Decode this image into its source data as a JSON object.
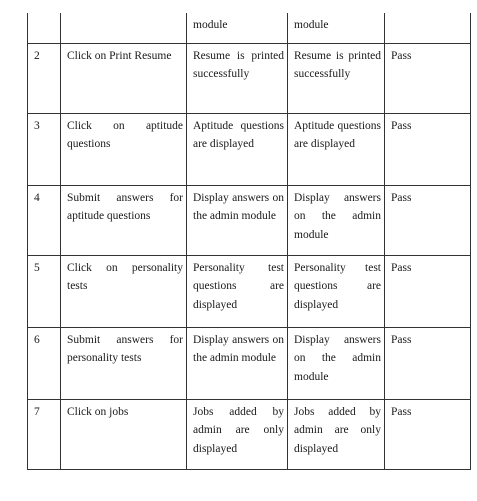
{
  "rows": [
    {
      "no": "",
      "action": "",
      "expected": "module",
      "actual": "module",
      "result": ""
    },
    {
      "no": "2",
      "action": "Click on Print Resume",
      "expected": "Resume is printed successfully",
      "actual": "Resume is printed successfully",
      "result": "Pass"
    },
    {
      "no": "3",
      "action": "Click on aptitude questions",
      "expected": "Aptitude questions are displayed",
      "actual": "Aptitude questions are displayed",
      "result": "Pass"
    },
    {
      "no": "4",
      "action": "Submit answers for aptitude questions",
      "expected": "Display answers on the admin module",
      "actual": "Display answers on the admin module",
      "result": "Pass"
    },
    {
      "no": "5",
      "action": "Click on personality tests",
      "expected": "Personality test questions are displayed",
      "actual": "Personality test questions are displayed",
      "result": "Pass"
    },
    {
      "no": "6",
      "action": "Submit answers for personality tests",
      "expected": "Display answers on the admin module",
      "actual": "Display answers on the admin module",
      "result": "Pass"
    },
    {
      "no": "7",
      "action": "Click on jobs",
      "expected": "Jobs added by admin are only displayed",
      "actual": "Jobs added by admin are only displayed",
      "result": "Pass"
    }
  ]
}
